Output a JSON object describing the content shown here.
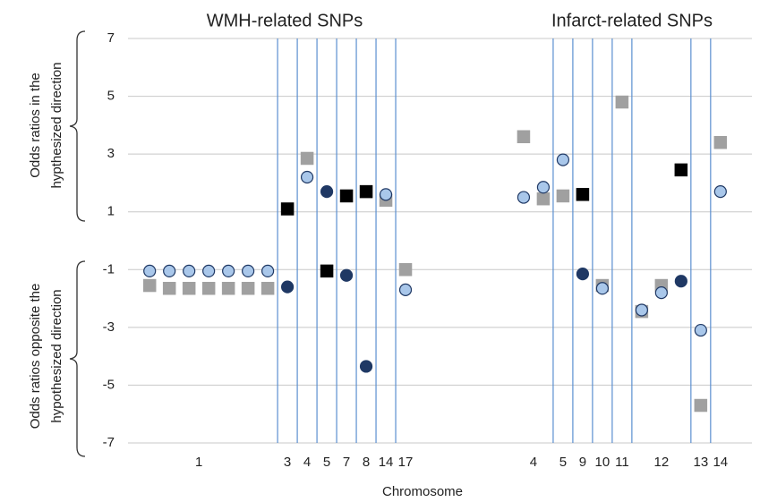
{
  "chart_data": {
    "type": "scatter",
    "titles": [
      "WMH-related SNPs",
      "Infarct-related SNPs"
    ],
    "ylabel_top": [
      "Odds ratios in the",
      "hypthesized direction"
    ],
    "ylabel_bottom": [
      "Odds ratios opposite the",
      "hypothesized direction"
    ],
    "xlabel": "Chromosome",
    "xlim": [
      -1.1,
      30.6
    ],
    "ylim": [
      -7,
      7
    ],
    "yticks": [
      7,
      5,
      3,
      1,
      -1,
      -3,
      -5,
      -7
    ],
    "xticks": [
      {
        "value": 2.5,
        "label": "1"
      },
      {
        "value": 7,
        "label": "3"
      },
      {
        "value": 8,
        "label": "4"
      },
      {
        "value": 9,
        "label": "5"
      },
      {
        "value": 10,
        "label": "7"
      },
      {
        "value": 11,
        "label": "8"
      },
      {
        "value": 12,
        "label": "14"
      },
      {
        "value": 13,
        "label": "17"
      },
      {
        "value": 19.5,
        "label": "4"
      },
      {
        "value": 21,
        "label": "5"
      },
      {
        "value": 22,
        "label": "9"
      },
      {
        "value": 23,
        "label": "10"
      },
      {
        "value": 24,
        "label": "11"
      },
      {
        "value": 26,
        "label": "12"
      },
      {
        "value": 28,
        "label": "13"
      },
      {
        "value": 29,
        "label": "14"
      }
    ],
    "vlines": [
      6.5,
      7.5,
      8.5,
      9.5,
      10.5,
      11.5,
      12.5,
      20.5,
      21.5,
      22.5,
      23.5,
      24.5,
      27.5,
      28.5
    ],
    "vline_color": "#5b8fd0",
    "grid": true,
    "series": [
      {
        "marker": "square",
        "color": "#a0a0a0",
        "x": [
          0,
          1,
          2,
          3,
          4,
          5,
          6,
          8,
          12,
          13,
          19,
          20,
          21,
          23,
          24,
          25,
          26,
          28,
          29
        ],
        "values": [
          -1.55,
          -1.65,
          -1.65,
          -1.65,
          -1.65,
          -1.65,
          -1.65,
          2.85,
          1.4,
          -1.0,
          3.6,
          1.45,
          1.55,
          -1.55,
          4.8,
          -2.45,
          -1.55,
          -5.7,
          3.4
        ]
      },
      {
        "marker": "circle",
        "color": "#a9c7ea",
        "x": [
          0,
          1,
          2,
          3,
          4,
          5,
          6,
          8,
          12,
          13,
          19,
          20,
          21,
          23,
          25,
          26,
          28,
          29
        ],
        "values": [
          -1.05,
          -1.05,
          -1.05,
          -1.05,
          -1.05,
          -1.05,
          -1.05,
          2.2,
          1.6,
          -1.7,
          1.5,
          1.85,
          2.8,
          -1.65,
          -2.4,
          -1.8,
          -3.1,
          1.7
        ]
      },
      {
        "marker": "square",
        "color": "#000000",
        "x": [
          7,
          9,
          10,
          11,
          22,
          27
        ],
        "values": [
          1.1,
          -1.05,
          1.55,
          1.7,
          1.6,
          2.45
        ]
      },
      {
        "marker": "circle",
        "color": "#1f3864",
        "x": [
          7,
          9,
          10,
          11,
          22,
          27
        ],
        "values": [
          -1.6,
          1.7,
          -1.2,
          -4.35,
          -1.15,
          -1.4
        ]
      }
    ]
  }
}
